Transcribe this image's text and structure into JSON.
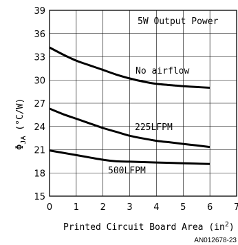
{
  "chart_data": {
    "type": "line",
    "title": "",
    "annotation_power": "5W Output Power",
    "xlabel": {
      "text": "Printed Circuit Board Area (in",
      "sup": "2",
      "close": ")"
    },
    "ylabel": {
      "main": "Φ",
      "sub": "JA",
      "rest": " (°C/W)"
    },
    "xlim": [
      0,
      7
    ],
    "ylim": [
      15,
      39
    ],
    "xticks": [
      0,
      1,
      2,
      3,
      4,
      5,
      6,
      7
    ],
    "yticks": [
      15,
      18,
      21,
      24,
      27,
      30,
      33,
      36,
      39
    ],
    "grid": true,
    "series": [
      {
        "name": "No airflow",
        "x": [
          0,
          0.5,
          1,
          1.5,
          2,
          2.5,
          3,
          3.5,
          4,
          4.5,
          5,
          5.5,
          6
        ],
        "y": [
          34.2,
          33.3,
          32.5,
          31.9,
          31.3,
          30.7,
          30.2,
          29.8,
          29.5,
          29.35,
          29.2,
          29.1,
          29.0
        ]
      },
      {
        "name": "225LFPM",
        "x": [
          0,
          0.5,
          1,
          1.5,
          2,
          2.5,
          3,
          3.5,
          4,
          4.5,
          5,
          5.5,
          6
        ],
        "y": [
          26.3,
          25.6,
          25.0,
          24.4,
          23.8,
          23.3,
          22.8,
          22.45,
          22.15,
          21.95,
          21.75,
          21.55,
          21.35
        ]
      },
      {
        "name": "500LFPM",
        "x": [
          0,
          0.5,
          1,
          1.5,
          2,
          2.5,
          3,
          3.5,
          4,
          4.5,
          5,
          5.5,
          6
        ],
        "y": [
          20.9,
          20.6,
          20.3,
          20.0,
          19.7,
          19.5,
          19.45,
          19.4,
          19.35,
          19.3,
          19.25,
          19.2,
          19.15
        ]
      }
    ]
  },
  "footer_code": "AN012678-23"
}
